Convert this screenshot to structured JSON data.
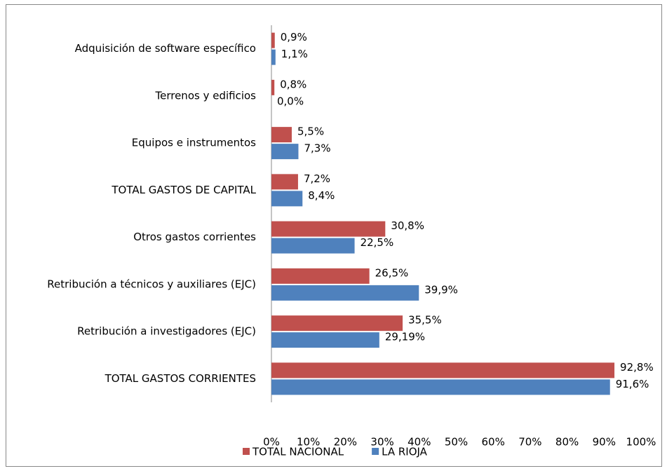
{
  "chart_data": {
    "type": "hbar",
    "categories": [
      "Adquisición de software específico",
      "Terrenos y edificios",
      "Equipos e instrumentos",
      "TOTAL GASTOS DE CAPITAL",
      "Otros gastos corrientes",
      "Retribución a técnicos y auxiliares (EJC)",
      "Retribución a investigadores (EJC)",
      "TOTAL GASTOS CORRIENTES"
    ],
    "series": [
      {
        "name": "TOTAL NACIONAL",
        "color": "#c0504d",
        "values": [
          0.9,
          0.8,
          5.5,
          7.2,
          30.8,
          26.5,
          35.5,
          92.8
        ],
        "value_labels": [
          "0,9%",
          "0,8%",
          "5,5%",
          "7,2%",
          "30,8%",
          "26,5%",
          "35,5%",
          "92,8%"
        ]
      },
      {
        "name": "LA RIOJA",
        "color": "#4f81bd",
        "values": [
          1.1,
          0.0,
          7.3,
          8.4,
          22.5,
          39.9,
          29.19,
          91.6
        ],
        "value_labels": [
          "1,1%",
          "0,0%",
          "7,3%",
          "8,4%",
          "22,5%",
          "39,9%",
          "29,19%",
          "91,6%"
        ]
      }
    ],
    "xlim": [
      0,
      100
    ],
    "xticks": [
      {
        "value": 0,
        "label": "0%"
      },
      {
        "value": 10,
        "label": "10%"
      },
      {
        "value": 20,
        "label": "20%"
      },
      {
        "value": 30,
        "label": "30%"
      },
      {
        "value": 40,
        "label": "40%"
      },
      {
        "value": 50,
        "label": "50%"
      },
      {
        "value": 60,
        "label": "60%"
      },
      {
        "value": 70,
        "label": "70%"
      },
      {
        "value": 80,
        "label": "80%"
      },
      {
        "value": 90,
        "label": "90%"
      },
      {
        "value": 100,
        "label": "100%"
      }
    ],
    "grid": false,
    "legend": "bottom"
  }
}
